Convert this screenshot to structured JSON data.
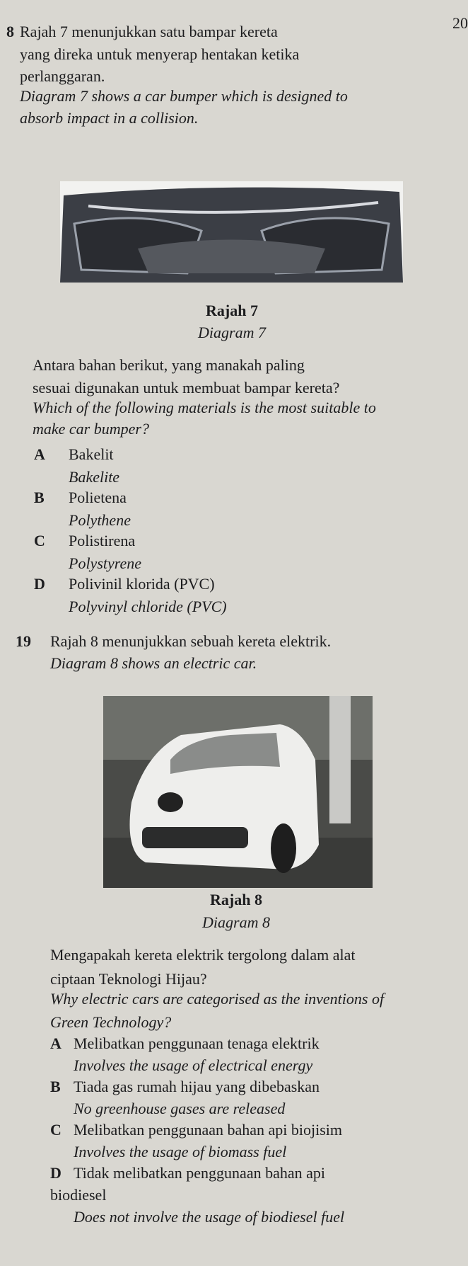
{
  "page_number": "20",
  "question_18": {
    "number": "8",
    "stem_malay": [
      "Rajah 7 menunjukkan satu bampar kereta",
      "yang direka untuk menyerap hentakan ketika",
      "perlanggaran."
    ],
    "stem_english": [
      "Diagram 7 shows a car bumper which is designed to",
      "absorb impact in a collision."
    ],
    "figure_label_malay": "Rajah 7",
    "figure_label_english": "Diagram 7",
    "question_malay": [
      "Antara bahan berikut, yang manakah paling",
      "sesuai digunakan untuk membuat bampar kereta?"
    ],
    "question_english": [
      "Which of the following materials is the most suitable to",
      "make car bumper?"
    ],
    "options": [
      {
        "letter": "A",
        "malay": "Bakelit",
        "english": "Bakelite"
      },
      {
        "letter": "B",
        "malay": "Polietena",
        "english": "Polythene"
      },
      {
        "letter": "C",
        "malay": "Polistirena",
        "english": "Polystyrene"
      },
      {
        "letter": "D",
        "malay": "Polivinil klorida (PVC)",
        "english": "Polyvinyl chloride (PVC)"
      }
    ]
  },
  "question_19": {
    "number": "19",
    "stem_malay": "Rajah 8 menunjukkan sebuah kereta elektrik.",
    "stem_english": "Diagram 8 shows an electric car.",
    "figure_label_malay": "Rajah 8",
    "figure_label_english": "Diagram 8",
    "question_malay": [
      "Mengapakah kereta elektrik tergolong dalam alat",
      "ciptaan Teknologi Hijau?"
    ],
    "question_english": [
      "Why electric cars are categorised as the inventions of",
      "Green Technology?"
    ],
    "options": [
      {
        "letter": "A",
        "malay": [
          "Melibatkan penggunaan tenaga elektrik"
        ],
        "english": "Involves the usage of electrical energy"
      },
      {
        "letter": "B",
        "malay": [
          "Tiada gas rumah hijau yang dibebaskan"
        ],
        "english": "No greenhouse gases are released"
      },
      {
        "letter": "C",
        "malay": [
          "Melibatkan penggunaan bahan api biojisim"
        ],
        "english": "Involves the usage of biomass fuel"
      },
      {
        "letter": "D",
        "malay": [
          "Tidak melibatkan penggunaan bahan api",
          "biodiesel"
        ],
        "english": "Does not involve the usage of biodiesel fuel"
      }
    ]
  }
}
